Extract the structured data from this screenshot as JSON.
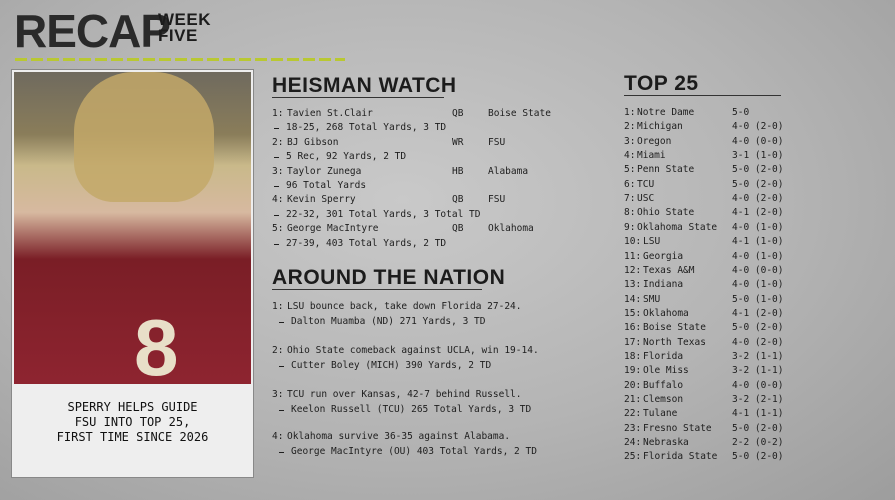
{
  "header": {
    "title": "RECAP",
    "week_label": "WEEK",
    "week_number": "FIVE"
  },
  "feature": {
    "caption_lines": [
      "SPERRY HELPS GUIDE",
      "FSU INTO TOP 25,",
      "FIRST TIME SINCE 2026"
    ]
  },
  "heisman": {
    "title": "HEISMAN WATCH",
    "entries": [
      {
        "rank": "1:",
        "name": "Tavien St.Clair",
        "position": "QB",
        "team": "Boise State",
        "stats": "18-25, 268 Total Yards, 3 TD"
      },
      {
        "rank": "2:",
        "name": "BJ Gibson",
        "position": "WR",
        "team": "FSU",
        "stats": "5 Rec, 92 Yards, 2 TD"
      },
      {
        "rank": "3:",
        "name": "Taylor Zunega",
        "position": "HB",
        "team": "Alabama",
        "stats": "96 Total Yards"
      },
      {
        "rank": "4:",
        "name": "Kevin Sperry",
        "position": "QB",
        "team": "FSU",
        "stats": "22-32, 301 Total Yards, 3 Total TD"
      },
      {
        "rank": "5:",
        "name": "George MacIntyre",
        "position": "QB",
        "team": "Oklahoma",
        "stats": "27-39, 403 Total Yards, 2 TD"
      }
    ]
  },
  "around": {
    "title": "AROUND THE NATION",
    "items": [
      {
        "number": "1:",
        "headline": "LSU bounce back, take down Florida 27-24.",
        "detail": "Dalton Muamba (ND) 271 Yards, 3 TD"
      },
      {
        "number": "2:",
        "headline": "Ohio State comeback against UCLA, win 19-14.",
        "detail": "Cutter Boley (MICH) 390 Yards, 2 TD"
      },
      {
        "number": "3:",
        "headline": "TCU run over Kansas, 42-7 behind Russell.",
        "detail": "Keelon Russell (TCU) 265 Total Yards, 3 TD"
      },
      {
        "number": "4:",
        "headline": "Oklahoma survive 36-35 against Alabama.",
        "detail": "George MacIntyre (OU) 403 Total Yards, 2 TD"
      }
    ]
  },
  "top25": {
    "title": "TOP 25",
    "rows": [
      [
        "1:",
        "Notre Dame",
        "5-0"
      ],
      [
        "2:",
        "Michigan",
        "4-0 (2-0)"
      ],
      [
        "3:",
        "Oregon",
        "4-0 (0-0)"
      ],
      [
        "4:",
        "Miami",
        "3-1 (1-0)"
      ],
      [
        "5:",
        "Penn State",
        "5-0 (2-0)"
      ],
      [
        "6:",
        "TCU",
        "5-0 (2-0)"
      ],
      [
        "7:",
        "USC",
        "4-0 (2-0)"
      ],
      [
        "8:",
        "Ohio State",
        "4-1 (2-0)"
      ],
      [
        "9:",
        "Oklahoma State",
        "4-0 (1-0)"
      ],
      [
        "10:",
        "LSU",
        "4-1 (1-0)"
      ],
      [
        "11:",
        "Georgia",
        "4-0 (1-0)"
      ],
      [
        "12:",
        "Texas A&M",
        "4-0 (0-0)"
      ],
      [
        "13:",
        "Indiana",
        "4-0 (1-0)"
      ],
      [
        "14:",
        "SMU",
        "5-0 (1-0)"
      ],
      [
        "15:",
        "Oklahoma",
        "4-1 (2-0)"
      ],
      [
        "16:",
        "Boise State",
        "5-0 (2-0)"
      ],
      [
        "17:",
        "North Texas",
        "4-0 (2-0)"
      ],
      [
        "18:",
        "Florida",
        "3-2 (1-1)"
      ],
      [
        "19:",
        "Ole Miss",
        "3-2 (1-1)"
      ],
      [
        "20:",
        "Buffalo",
        "4-0 (0-0)"
      ],
      [
        "21:",
        "Clemson",
        "3-2 (2-1)"
      ],
      [
        "22:",
        "Tulane",
        "4-1 (1-1)"
      ],
      [
        "23:",
        "Fresno State",
        "5-0 (2-0)"
      ],
      [
        "24:",
        "Nebraska",
        "2-2 (0-2)"
      ],
      [
        "25:",
        "Florida State",
        "5-0 (2-0)"
      ]
    ]
  }
}
